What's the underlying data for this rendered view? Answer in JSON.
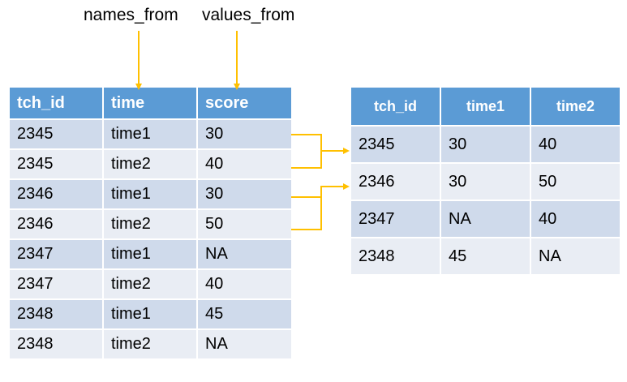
{
  "labels": {
    "names_from": "names_from",
    "values_from": "values_from"
  },
  "left_table": {
    "headers": [
      "tch_id",
      "time",
      "score"
    ],
    "rows": [
      [
        "2345",
        "time1",
        "30"
      ],
      [
        "2345",
        "time2",
        "40"
      ],
      [
        "2346",
        "time1",
        "30"
      ],
      [
        "2346",
        "time2",
        "50"
      ],
      [
        "2347",
        "time1",
        "NA"
      ],
      [
        "2347",
        "time2",
        "40"
      ],
      [
        "2348",
        "time1",
        "45"
      ],
      [
        "2348",
        "time2",
        "NA"
      ]
    ]
  },
  "right_table": {
    "headers": [
      "tch_id",
      "time1",
      "time2"
    ],
    "rows": [
      [
        "2345",
        "30",
        "40"
      ],
      [
        "2346",
        "30",
        "50"
      ],
      [
        "2347",
        "NA",
        "40"
      ],
      [
        "2348",
        "45",
        "NA"
      ]
    ]
  },
  "colors": {
    "header": "#5b9bd5",
    "row_dark": "#cfdaeb",
    "row_light": "#e9edf4",
    "arrow": "#ffc000"
  }
}
